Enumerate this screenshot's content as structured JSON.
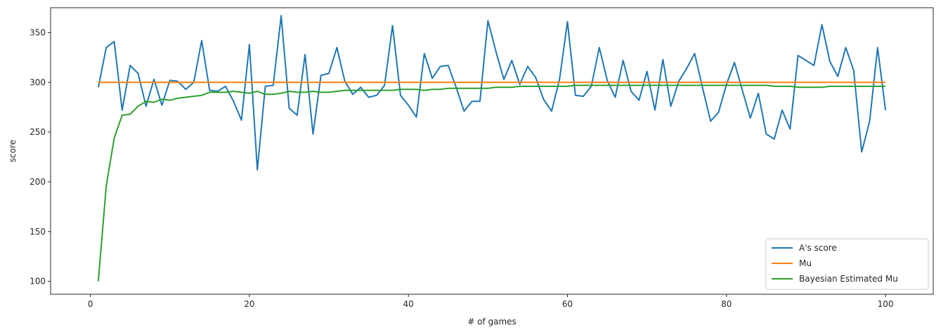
{
  "chart_data": {
    "type": "line",
    "xlabel": "# of games",
    "ylabel": "score",
    "xlim": [
      -5,
      106
    ],
    "ylim": [
      87,
      375
    ],
    "xticks": [
      0,
      20,
      40,
      60,
      80,
      100
    ],
    "yticks": [
      100,
      150,
      200,
      250,
      300,
      350
    ],
    "grid": false,
    "legend_position": "lower-right",
    "x": [
      1,
      2,
      3,
      4,
      5,
      6,
      7,
      8,
      9,
      10,
      11,
      12,
      13,
      14,
      15,
      16,
      17,
      18,
      19,
      20,
      21,
      22,
      23,
      24,
      25,
      26,
      27,
      28,
      29,
      30,
      31,
      32,
      33,
      34,
      35,
      36,
      37,
      38,
      39,
      40,
      41,
      42,
      43,
      44,
      45,
      46,
      47,
      48,
      49,
      50,
      51,
      52,
      53,
      54,
      55,
      56,
      57,
      58,
      59,
      60,
      61,
      62,
      63,
      64,
      65,
      66,
      67,
      68,
      69,
      70,
      71,
      72,
      73,
      74,
      75,
      76,
      77,
      78,
      79,
      80,
      81,
      82,
      83,
      84,
      85,
      86,
      87,
      88,
      89,
      90,
      91,
      92,
      93,
      94,
      95,
      96,
      97,
      98,
      99,
      100
    ],
    "series": [
      {
        "name": "A's score",
        "color": "#1f77b4",
        "values": [
          295,
          335,
          341,
          272,
          317,
          309,
          276,
          303,
          277,
          302,
          301,
          293,
          300,
          342,
          292,
          291,
          296,
          281,
          262,
          338,
          212,
          296,
          297,
          367,
          274,
          267,
          328,
          248,
          307,
          309,
          335,
          301,
          288,
          295,
          285,
          287,
          297,
          357,
          287,
          277,
          265,
          329,
          304,
          316,
          317,
          295,
          271,
          281,
          281,
          362,
          331,
          303,
          322,
          298,
          316,
          305,
          283,
          271,
          303,
          361,
          287,
          286,
          296,
          335,
          302,
          285,
          322,
          291,
          282,
          311,
          272,
          323,
          276,
          301,
          314,
          329,
          294,
          261,
          270,
          298,
          320,
          292,
          264,
          289,
          248,
          243,
          272,
          253,
          327,
          322,
          317,
          358,
          321,
          306,
          335,
          312,
          230,
          261,
          335,
          272
        ]
      },
      {
        "name": "Mu",
        "color": "#ff7f0e",
        "values": [
          300,
          300,
          300,
          300,
          300,
          300,
          300,
          300,
          300,
          300,
          300,
          300,
          300,
          300,
          300,
          300,
          300,
          300,
          300,
          300,
          300,
          300,
          300,
          300,
          300,
          300,
          300,
          300,
          300,
          300,
          300,
          300,
          300,
          300,
          300,
          300,
          300,
          300,
          300,
          300,
          300,
          300,
          300,
          300,
          300,
          300,
          300,
          300,
          300,
          300,
          300,
          300,
          300,
          300,
          300,
          300,
          300,
          300,
          300,
          300,
          300,
          300,
          300,
          300,
          300,
          300,
          300,
          300,
          300,
          300,
          300,
          300,
          300,
          300,
          300,
          300,
          300,
          300,
          300,
          300,
          300,
          300,
          300,
          300,
          300,
          300,
          300,
          300,
          300,
          300,
          300,
          300,
          300,
          300,
          300,
          300,
          300,
          300,
          300,
          300
        ]
      },
      {
        "name": "Bayesian Estimated Mu",
        "color": "#2ca02c",
        "values": [
          100,
          196,
          244,
          267,
          268,
          276,
          281,
          280,
          283,
          282,
          284,
          285,
          286,
          287,
          290,
          290,
          290,
          291,
          290,
          289,
          291,
          288,
          288,
          289,
          291,
          290,
          290,
          291,
          290,
          290,
          291,
          292,
          292,
          292,
          292,
          292,
          292,
          292,
          293,
          293,
          293,
          292,
          293,
          293,
          294,
          294,
          294,
          294,
          294,
          294,
          295,
          295,
          295,
          296,
          296,
          296,
          296,
          296,
          296,
          296,
          297,
          297,
          297,
          297,
          297,
          297,
          297,
          297,
          297,
          297,
          297,
          297,
          297,
          297,
          297,
          297,
          297,
          297,
          297,
          297,
          297,
          297,
          297,
          297,
          297,
          296,
          296,
          296,
          295,
          295,
          295,
          295,
          296,
          296,
          296,
          296,
          296,
          296,
          296,
          296
        ]
      }
    ]
  }
}
